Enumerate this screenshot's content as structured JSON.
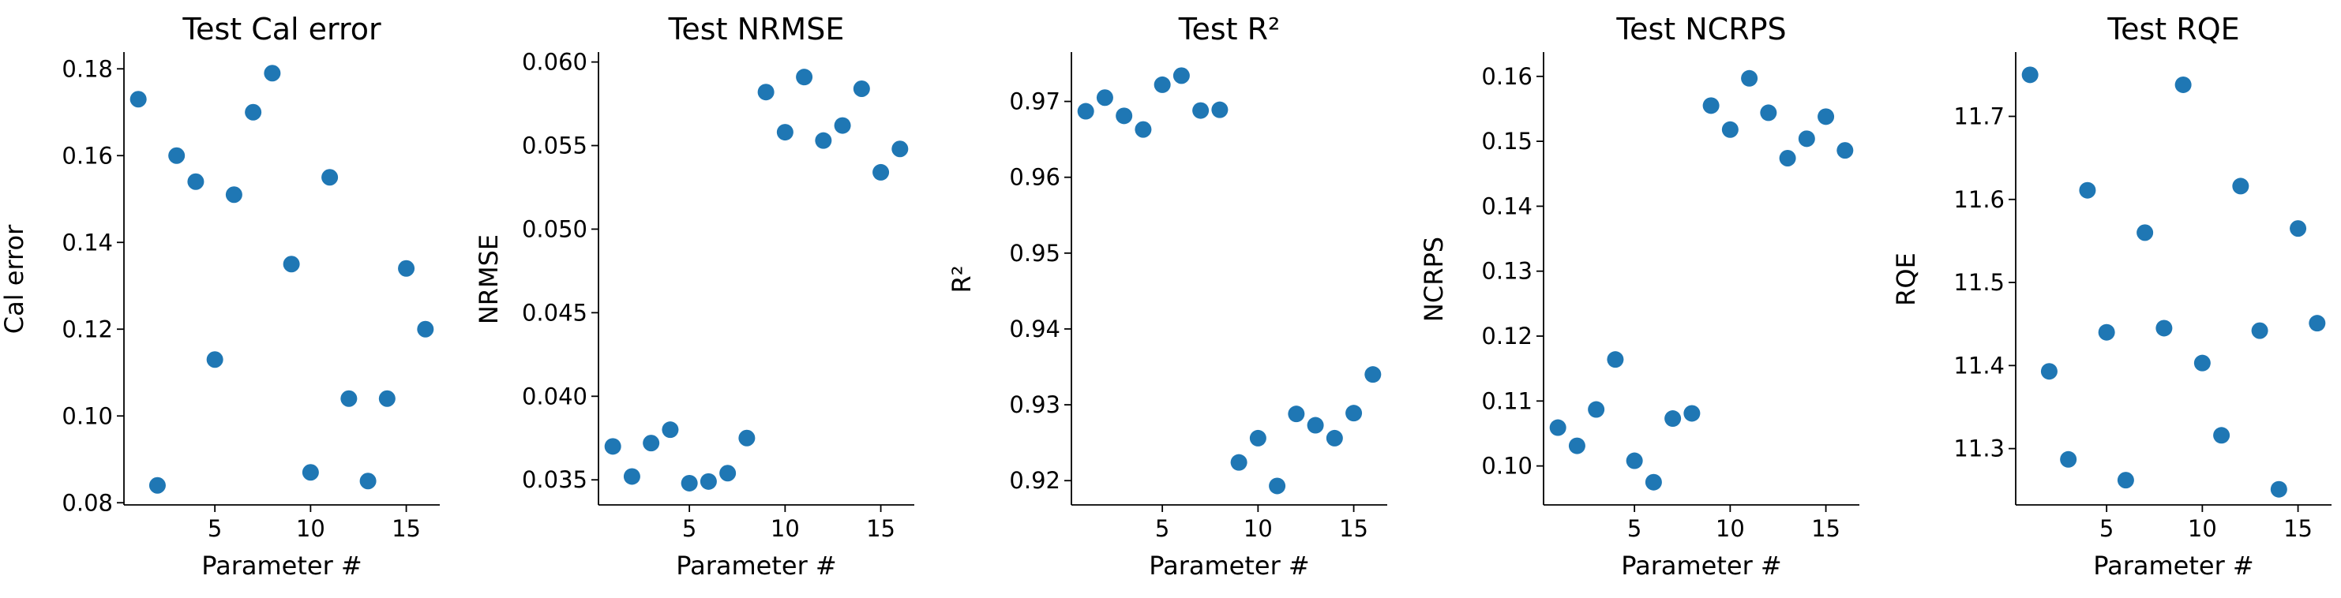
{
  "chart_data": [
    {
      "type": "scatter",
      "title": "Test Cal error",
      "xlabel": "Parameter #",
      "ylabel": "Cal error",
      "xlim": [
        0.25,
        16.75
      ],
      "ylim": [
        0.0795,
        0.1835
      ],
      "xticks": [
        5,
        10,
        15
      ],
      "yticks": [
        0.08,
        0.1,
        0.12,
        0.14,
        0.16,
        0.18
      ],
      "ytick_labels": [
        "0.08",
        "0.10",
        "0.12",
        "0.14",
        "0.16",
        "0.18"
      ],
      "x": [
        1,
        2,
        3,
        4,
        5,
        6,
        7,
        8,
        9,
        10,
        11,
        12,
        13,
        14,
        15,
        16
      ],
      "y": [
        0.173,
        0.084,
        0.16,
        0.154,
        0.113,
        0.151,
        0.17,
        0.179,
        0.135,
        0.087,
        0.155,
        0.104,
        0.085,
        0.104,
        0.134,
        0.12
      ],
      "color": "#1f77b4",
      "grid": false
    },
    {
      "type": "scatter",
      "title": "Test NRMSE",
      "xlabel": "Parameter #",
      "ylabel": "NRMSE",
      "xlim": [
        0.25,
        16.75
      ],
      "ylim": [
        0.0335,
        0.0605
      ],
      "xticks": [
        5,
        10,
        15
      ],
      "yticks": [
        0.035,
        0.04,
        0.045,
        0.05,
        0.055,
        0.06
      ],
      "ytick_labels": [
        "0.035",
        "0.040",
        "0.045",
        "0.050",
        "0.055",
        "0.060"
      ],
      "x": [
        1,
        2,
        3,
        4,
        5,
        6,
        7,
        8,
        9,
        10,
        11,
        12,
        13,
        14,
        15,
        16
      ],
      "y": [
        0.037,
        0.0352,
        0.0372,
        0.038,
        0.0348,
        0.0349,
        0.0354,
        0.0375,
        0.0582,
        0.0558,
        0.0591,
        0.0553,
        0.0562,
        0.0584,
        0.0534,
        0.0548
      ],
      "color": "#1f77b4",
      "grid": false
    },
    {
      "type": "scatter",
      "title": "Test R²",
      "xlabel": "Parameter #",
      "ylabel": "R²",
      "xlim": [
        0.25,
        16.75
      ],
      "ylim": [
        0.9168,
        0.9763
      ],
      "xticks": [
        5,
        10,
        15
      ],
      "yticks": [
        0.92,
        0.93,
        0.94,
        0.95,
        0.96,
        0.97
      ],
      "ytick_labels": [
        "0.92",
        "0.93",
        "0.94",
        "0.95",
        "0.96",
        "0.97"
      ],
      "x": [
        1,
        2,
        3,
        4,
        5,
        6,
        7,
        8,
        9,
        10,
        11,
        12,
        13,
        14,
        15,
        16
      ],
      "y": [
        0.9687,
        0.9705,
        0.9681,
        0.9663,
        0.9722,
        0.9734,
        0.9688,
        0.9689,
        0.9224,
        0.9256,
        0.9193,
        0.9288,
        0.9273,
        0.9256,
        0.9289,
        0.934
      ],
      "color": "#1f77b4",
      "grid": false
    },
    {
      "type": "scatter",
      "title": "Test NCRPS",
      "xlabel": "Parameter #",
      "ylabel": "NCRPS",
      "xlim": [
        0.25,
        16.75
      ],
      "ylim": [
        0.094,
        0.1635
      ],
      "xticks": [
        5,
        10,
        15
      ],
      "yticks": [
        0.1,
        0.11,
        0.12,
        0.13,
        0.14,
        0.15,
        0.16
      ],
      "ytick_labels": [
        "0.10",
        "0.11",
        "0.12",
        "0.13",
        "0.14",
        "0.15",
        "0.16"
      ],
      "x": [
        1,
        2,
        3,
        4,
        5,
        6,
        7,
        8,
        9,
        10,
        11,
        12,
        13,
        14,
        15,
        16
      ],
      "y": [
        0.1059,
        0.1031,
        0.1087,
        0.1164,
        0.1008,
        0.0975,
        0.1073,
        0.1081,
        0.1555,
        0.1518,
        0.1597,
        0.1544,
        0.1474,
        0.1504,
        0.1538,
        0.1486
      ],
      "color": "#1f77b4",
      "grid": false
    },
    {
      "type": "scatter",
      "title": "Test RQE",
      "xlabel": "Parameter #",
      "ylabel": "RQE",
      "xlim": [
        0.25,
        16.75
      ],
      "ylim": [
        11.2322,
        11.7755
      ],
      "xticks": [
        5,
        10,
        15
      ],
      "yticks": [
        11.3,
        11.4,
        11.5,
        11.6,
        11.7
      ],
      "ytick_labels": [
        "11.3",
        "11.4",
        "11.5",
        "11.6",
        "11.7"
      ],
      "x": [
        1,
        2,
        3,
        4,
        5,
        6,
        7,
        8,
        9,
        10,
        11,
        12,
        13,
        14,
        15,
        16
      ],
      "y": [
        11.75,
        11.393,
        11.287,
        11.611,
        11.44,
        11.262,
        11.56,
        11.445,
        11.738,
        11.403,
        11.316,
        11.616,
        11.442,
        11.251,
        11.565,
        11.451
      ],
      "color": "#1f77b4",
      "grid": false
    }
  ]
}
